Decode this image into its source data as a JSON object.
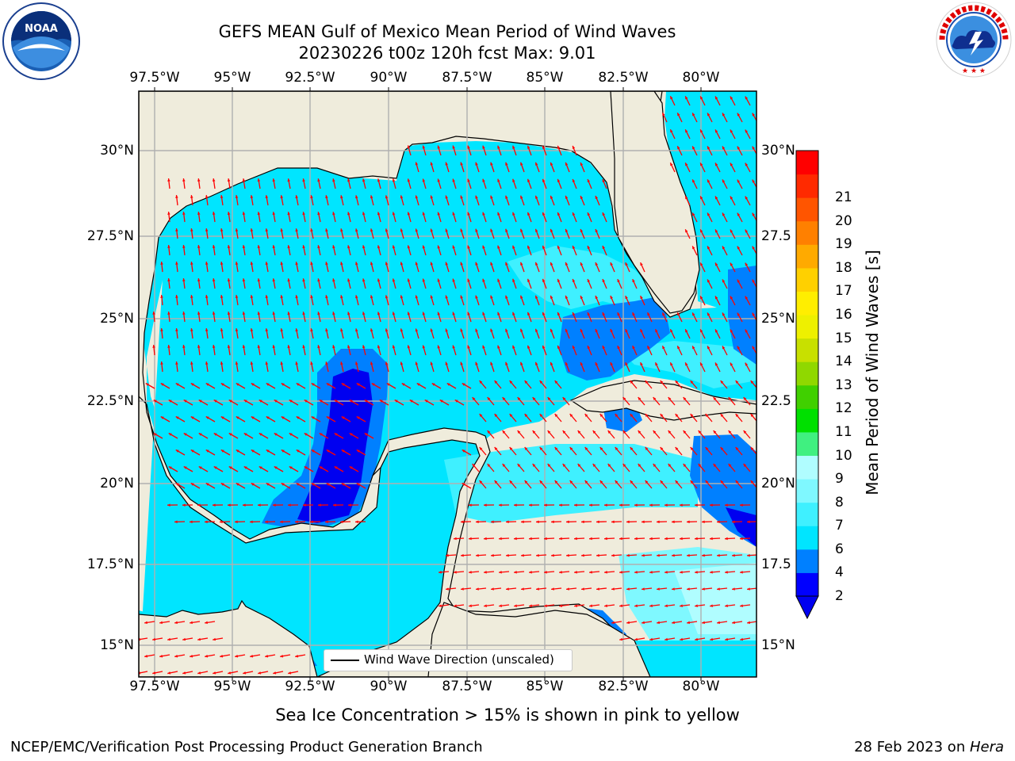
{
  "title": {
    "line1": "GEFS MEAN Gulf of Mexico Mean Period of Wind Waves",
    "line2": "20230226 t00z 120h fcst   Max: 9.01"
  },
  "logos": {
    "left": {
      "icon": "noaa-logo-icon",
      "text": "NOAA",
      "ring_text": "NATIONAL OCEANIC AND ATMOSPHERIC ADMINISTRATION · U.S. DEPARTMENT OF COMMERCE"
    },
    "right": {
      "icon": "nws-logo-icon",
      "ring_text": "NATIONAL WEATHER SERVICE"
    }
  },
  "map": {
    "lon_ticks": [
      "97.5°W",
      "95°W",
      "92.5°W",
      "90°W",
      "87.5°W",
      "85°W",
      "82.5°W",
      "80°W"
    ],
    "lat_ticks_left": [
      "30°N",
      "27.5°N",
      "25°N",
      "22.5°N",
      "20°N",
      "17.5°N",
      "15°N"
    ],
    "lat_ticks_right": [
      "30°N",
      "27.5",
      "25°N",
      "22.5",
      "20°N",
      "17.5",
      "15°N"
    ],
    "legend_label": "Wind Wave Direction (unscaled)",
    "colors": {
      "land": "#efecdc",
      "grid": "#b0b0b0",
      "arrow": "#ff0000",
      "coast": "#000000"
    }
  },
  "colorbar": {
    "label": "Mean Period of Wind Waves [s]",
    "tick_labels": [
      "2",
      "4",
      "6",
      "7",
      "8",
      "9",
      "10",
      "11",
      "12",
      "13",
      "14",
      "15",
      "16",
      "17",
      "18",
      "19",
      "20",
      "21"
    ],
    "colors": [
      "#0000ff",
      "#0080ff",
      "#00e5ff",
      "#3ff0ff",
      "#7ff8ff",
      "#b0fdff",
      "#40f080",
      "#00e000",
      "#40d000",
      "#90d800",
      "#c8e000",
      "#eef000",
      "#ffee00",
      "#ffd000",
      "#ffaa00",
      "#ff8000",
      "#ff5500",
      "#ff2a00",
      "#ff0000"
    ],
    "under_color": "#0000f0"
  },
  "notes": {
    "sea_ice": "Sea Ice Concentration > 15% is shown in pink to yellow",
    "producer": "NCEP/EMC/Verification Post Processing Product Generation Branch",
    "date": "28 Feb 2023 on ",
    "host": "Hera"
  }
}
